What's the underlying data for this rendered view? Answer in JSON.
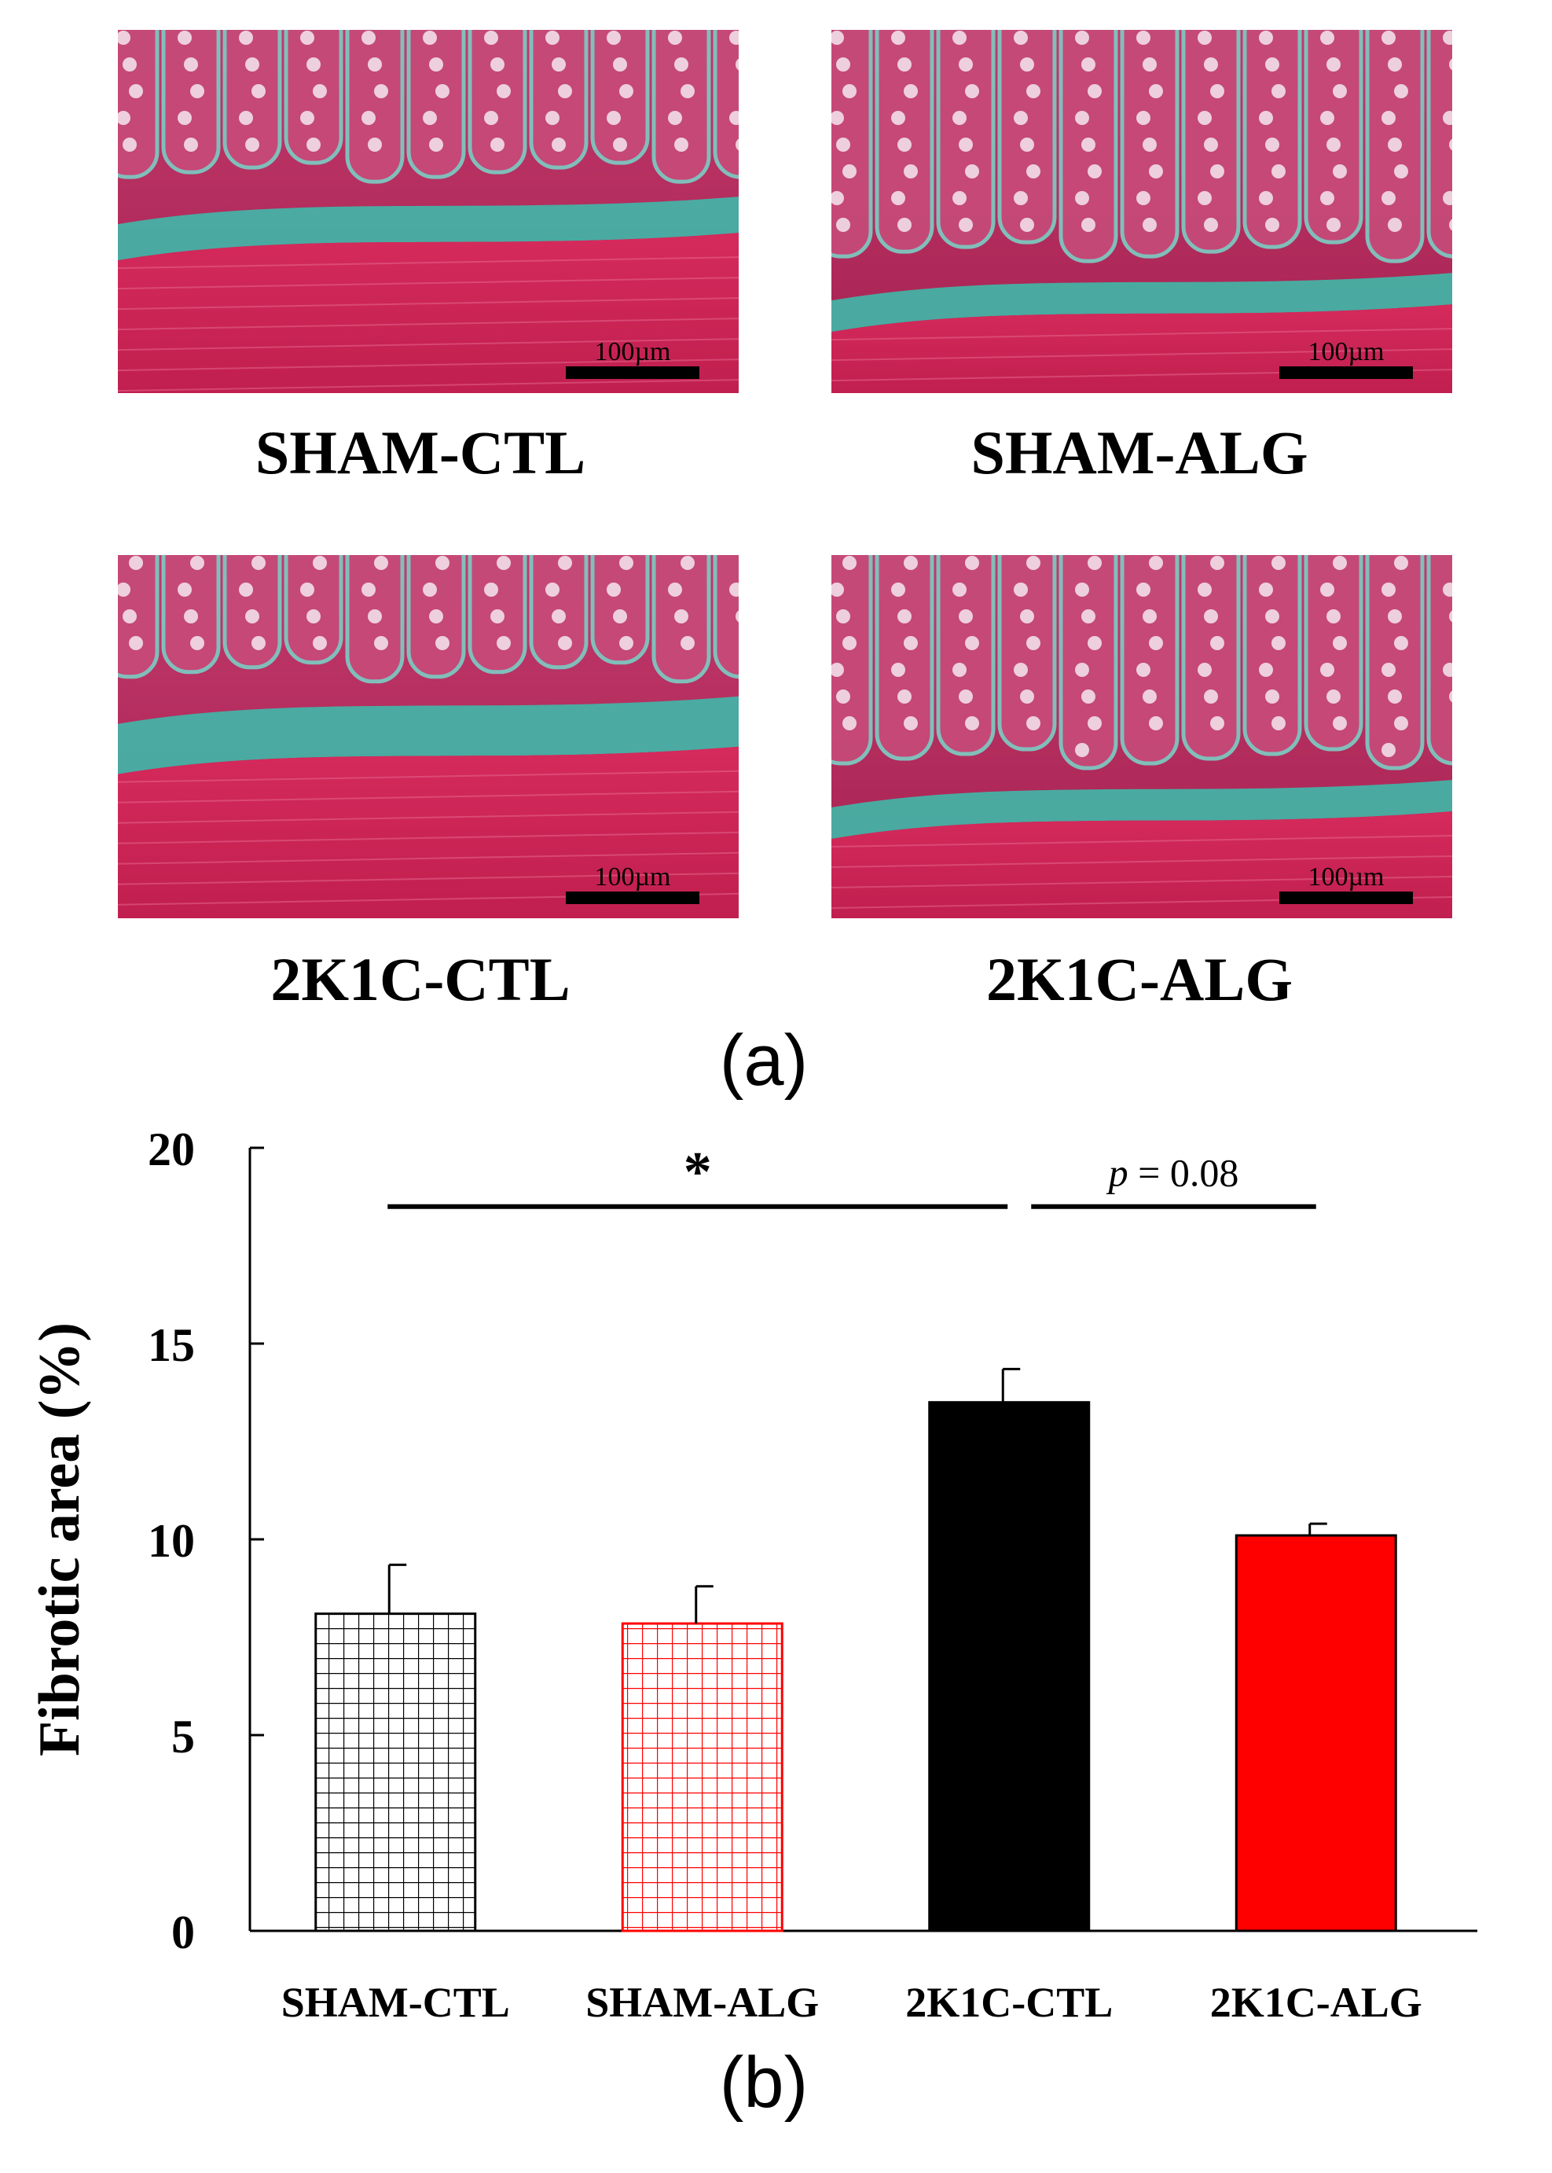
{
  "figure": {
    "panel_a_label": "(a)",
    "panel_b_label": "(b)"
  },
  "micrographs": [
    {
      "label": "SHAM-CTL",
      "scale_bar": "100µm"
    },
    {
      "label": "SHAM-ALG",
      "scale_bar": "100µm"
    },
    {
      "label": "2K1C-CTL",
      "scale_bar": "100µm"
    },
    {
      "label": "2K1C-ALG",
      "scale_bar": "100µm"
    }
  ],
  "colors": {
    "mucosa": "#b3245a",
    "muscle": "#cc2255",
    "fibrosis": "#3fb8a8",
    "black": "#000000",
    "red": "#ff0000"
  },
  "chart_data": {
    "type": "bar",
    "title": "",
    "xlabel": "",
    "ylabel": "Fibrotic area (%)",
    "ylim": [
      0,
      20
    ],
    "yticks": [
      0,
      5,
      10,
      15,
      20
    ],
    "categories": [
      "SHAM-CTL",
      "SHAM-ALG",
      "2K1C-CTL",
      "2K1C-ALG"
    ],
    "values": [
      8.1,
      7.85,
      13.5,
      10.1
    ],
    "errors": [
      1.25,
      0.95,
      0.85,
      0.3
    ],
    "fills": [
      "black-grid",
      "red-grid",
      "black-solid",
      "red-solid"
    ],
    "significance": [
      {
        "from": 0,
        "to": 2,
        "y": 18.5,
        "label": "*"
      },
      {
        "from": 2,
        "to": 3,
        "y": 18.5,
        "label_prefix": "p",
        "label_value": " = 0.08"
      }
    ]
  }
}
